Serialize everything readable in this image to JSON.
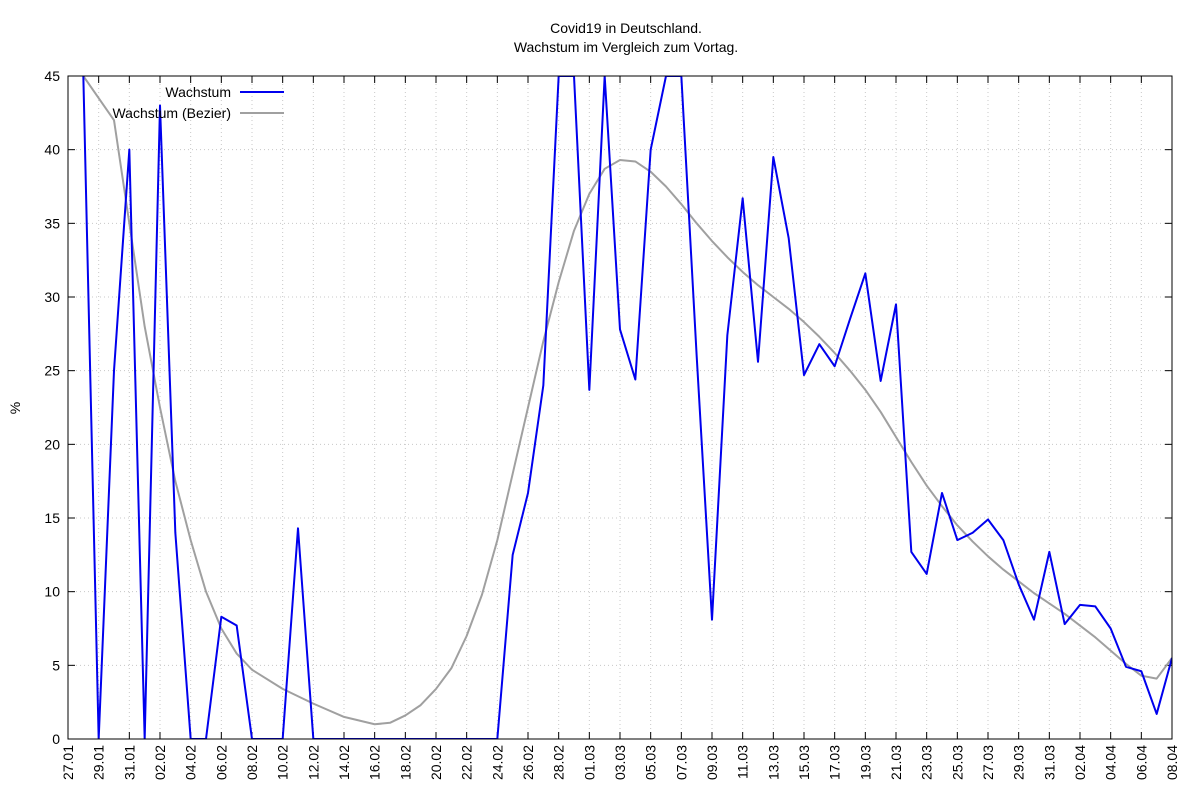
{
  "chart_data": {
    "type": "line",
    "title": "Covid19 in Deutschland.",
    "subtitle": "Wachstum im Vergleich zum Vortag.",
    "ylabel": "%",
    "xlabel": "",
    "ylim": [
      0,
      45
    ],
    "yticks": [
      0,
      5,
      10,
      15,
      20,
      25,
      30,
      35,
      40,
      45
    ],
    "xlim": [
      "2020-01-27",
      "2020-04-08"
    ],
    "xtick_labels": [
      "27.01",
      "29.01",
      "31.01",
      "02.02",
      "04.02",
      "06.02",
      "08.02",
      "10.02",
      "12.02",
      "14.02",
      "16.02",
      "18.02",
      "20.02",
      "22.02",
      "24.02",
      "26.02",
      "28.02",
      "01.03",
      "03.03",
      "05.03",
      "07.03",
      "09.03",
      "11.03",
      "13.03",
      "15.03",
      "17.03",
      "19.03",
      "21.03",
      "23.03",
      "25.03",
      "27.03",
      "29.03",
      "31.03",
      "02.04",
      "04.04",
      "06.04",
      "08.04"
    ],
    "grid": true,
    "legend_position": "top-left",
    "series": [
      {
        "name": "Wachstum",
        "color": "#0000ee",
        "points": [
          [
            "2020-01-28",
            45
          ],
          [
            "2020-01-29",
            0
          ],
          [
            "2020-01-30",
            25
          ],
          [
            "2020-01-31",
            40
          ],
          [
            "2020-02-01",
            0
          ],
          [
            "2020-02-02",
            43
          ],
          [
            "2020-02-03",
            14
          ],
          [
            "2020-02-04",
            0
          ],
          [
            "2020-02-05",
            0
          ],
          [
            "2020-02-06",
            8.3
          ],
          [
            "2020-02-07",
            7.7
          ],
          [
            "2020-02-08",
            0
          ],
          [
            "2020-02-09",
            0
          ],
          [
            "2020-02-10",
            0
          ],
          [
            "2020-02-11",
            14.3
          ],
          [
            "2020-02-12",
            0
          ],
          [
            "2020-02-13",
            0
          ],
          [
            "2020-02-14",
            0
          ],
          [
            "2020-02-15",
            0
          ],
          [
            "2020-02-16",
            0
          ],
          [
            "2020-02-17",
            0
          ],
          [
            "2020-02-18",
            0
          ],
          [
            "2020-02-19",
            0
          ],
          [
            "2020-02-20",
            0
          ],
          [
            "2020-02-21",
            0
          ],
          [
            "2020-02-22",
            0
          ],
          [
            "2020-02-23",
            0
          ],
          [
            "2020-02-24",
            0
          ],
          [
            "2020-02-25",
            12.5
          ],
          [
            "2020-02-26",
            16.7
          ],
          [
            "2020-02-27",
            24
          ],
          [
            "2020-02-28",
            45
          ],
          [
            "2020-02-29",
            45
          ],
          [
            "2020-03-01",
            23.7
          ],
          [
            "2020-03-02",
            45
          ],
          [
            "2020-03-03",
            27.8
          ],
          [
            "2020-03-04",
            24.4
          ],
          [
            "2020-03-05",
            40
          ],
          [
            "2020-03-06",
            45
          ],
          [
            "2020-03-07",
            45
          ],
          [
            "2020-03-08",
            26
          ],
          [
            "2020-03-09",
            8.1
          ],
          [
            "2020-03-10",
            27.4
          ],
          [
            "2020-03-11",
            36.7
          ],
          [
            "2020-03-12",
            25.6
          ],
          [
            "2020-03-13",
            39.5
          ],
          [
            "2020-03-14",
            34
          ],
          [
            "2020-03-15",
            24.7
          ],
          [
            "2020-03-16",
            26.8
          ],
          [
            "2020-03-17",
            25.3
          ],
          [
            "2020-03-18",
            28.5
          ],
          [
            "2020-03-19",
            31.6
          ],
          [
            "2020-03-20",
            24.3
          ],
          [
            "2020-03-21",
            29.5
          ],
          [
            "2020-03-22",
            12.7
          ],
          [
            "2020-03-23",
            11.2
          ],
          [
            "2020-03-24",
            16.7
          ],
          [
            "2020-03-25",
            13.5
          ],
          [
            "2020-03-26",
            14
          ],
          [
            "2020-03-27",
            14.9
          ],
          [
            "2020-03-28",
            13.5
          ],
          [
            "2020-03-29",
            10.5
          ],
          [
            "2020-03-30",
            8.1
          ],
          [
            "2020-03-31",
            12.7
          ],
          [
            "2020-04-01",
            7.8
          ],
          [
            "2020-04-02",
            9.1
          ],
          [
            "2020-04-03",
            9
          ],
          [
            "2020-04-04",
            7.5
          ],
          [
            "2020-04-05",
            4.9
          ],
          [
            "2020-04-06",
            4.6
          ],
          [
            "2020-04-07",
            1.7
          ],
          [
            "2020-04-08",
            5.5
          ]
        ]
      },
      {
        "name": "Wachstum (Bezier)",
        "color": "#a0a0a0",
        "points": [
          [
            "2020-01-28",
            45
          ],
          [
            "2020-01-30",
            42
          ],
          [
            "2020-02-01",
            28
          ],
          [
            "2020-02-02",
            22.5
          ],
          [
            "2020-02-03",
            17.5
          ],
          [
            "2020-02-04",
            13.5
          ],
          [
            "2020-02-05",
            10
          ],
          [
            "2020-02-06",
            7.5
          ],
          [
            "2020-02-07",
            5.8
          ],
          [
            "2020-02-08",
            4.7
          ],
          [
            "2020-02-10",
            3.4
          ],
          [
            "2020-02-12",
            2.4
          ],
          [
            "2020-02-14",
            1.5
          ],
          [
            "2020-02-16",
            1.0
          ],
          [
            "2020-02-17",
            1.1
          ],
          [
            "2020-02-18",
            1.6
          ],
          [
            "2020-02-19",
            2.3
          ],
          [
            "2020-02-20",
            3.4
          ],
          [
            "2020-02-21",
            4.8
          ],
          [
            "2020-02-22",
            7
          ],
          [
            "2020-02-23",
            9.8
          ],
          [
            "2020-02-24",
            13.5
          ],
          [
            "2020-02-25",
            18
          ],
          [
            "2020-02-26",
            22.5
          ],
          [
            "2020-02-27",
            27
          ],
          [
            "2020-02-28",
            31
          ],
          [
            "2020-02-29",
            34.5
          ],
          [
            "2020-03-01",
            37
          ],
          [
            "2020-03-02",
            38.7
          ],
          [
            "2020-03-03",
            39.3
          ],
          [
            "2020-03-04",
            39.2
          ],
          [
            "2020-03-05",
            38.5
          ],
          [
            "2020-03-06",
            37.5
          ],
          [
            "2020-03-07",
            36.3
          ],
          [
            "2020-03-08",
            35
          ],
          [
            "2020-03-09",
            33.8
          ],
          [
            "2020-03-10",
            32.7
          ],
          [
            "2020-03-11",
            31.7
          ],
          [
            "2020-03-12",
            30.8
          ],
          [
            "2020-03-13",
            30
          ],
          [
            "2020-03-14",
            29.2
          ],
          [
            "2020-03-15",
            28.3
          ],
          [
            "2020-03-16",
            27.3
          ],
          [
            "2020-03-17",
            26.2
          ],
          [
            "2020-03-18",
            25
          ],
          [
            "2020-03-19",
            23.7
          ],
          [
            "2020-03-20",
            22.2
          ],
          [
            "2020-03-21",
            20.5
          ],
          [
            "2020-03-22",
            18.8
          ],
          [
            "2020-03-23",
            17.2
          ],
          [
            "2020-03-24",
            15.8
          ],
          [
            "2020-03-25",
            14.5
          ],
          [
            "2020-03-26",
            13.4
          ],
          [
            "2020-03-27",
            12.4
          ],
          [
            "2020-03-28",
            11.5
          ],
          [
            "2020-03-29",
            10.7
          ],
          [
            "2020-03-30",
            9.9
          ],
          [
            "2020-03-31",
            9.2
          ],
          [
            "2020-04-01",
            8.5
          ],
          [
            "2020-04-02",
            7.7
          ],
          [
            "2020-04-03",
            6.9
          ],
          [
            "2020-04-04",
            6
          ],
          [
            "2020-04-05",
            5.1
          ],
          [
            "2020-04-06",
            4.3
          ],
          [
            "2020-04-07",
            4.1
          ],
          [
            "2020-04-08",
            5.5
          ]
        ]
      }
    ]
  }
}
